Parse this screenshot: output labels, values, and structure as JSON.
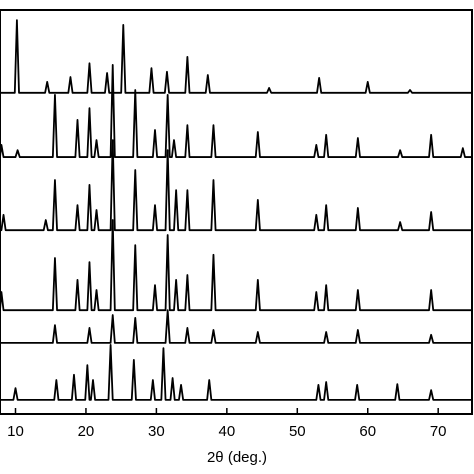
{
  "chart_data": {
    "type": "line",
    "xlabel": "2θ (deg.)",
    "xlim": [
      7.8,
      74.8
    ],
    "xticks": [
      10,
      20,
      30,
      40,
      50,
      60,
      70
    ],
    "ylim": [
      0,
      100
    ],
    "series": [
      {
        "color": "#000000",
        "x": [
          7.8,
          9.9,
          10.2,
          10.5,
          14.2,
          14.5,
          14.8,
          17.5,
          17.8,
          18.1,
          20.2,
          20.5,
          20.8,
          22.7,
          23.0,
          23.3,
          25.0,
          25.3,
          25.6,
          29.0,
          29.3,
          29.6,
          31.2,
          31.5,
          31.8,
          34.1,
          34.4,
          34.7,
          37.0,
          37.3,
          37.6,
          45.7,
          46.0,
          46.3,
          52.8,
          53.1,
          53.4,
          59.7,
          60.0,
          60.3,
          65.7,
          66.0,
          66.3,
          74.8
        ],
        "values": [
          79.5,
          79.5,
          97.5,
          79.5,
          79.5,
          82.2,
          79.5,
          79.5,
          83.4,
          79.5,
          79.5,
          86.8,
          79.5,
          79.5,
          84.4,
          79.5,
          79.5,
          96.3,
          79.5,
          79.5,
          85.6,
          79.5,
          79.5,
          84.7,
          79.5,
          79.5,
          88.4,
          79.5,
          79.5,
          83.9,
          79.5,
          79.5,
          80.7,
          79.5,
          79.5,
          83.2,
          79.5,
          79.5,
          82.2,
          79.5,
          79.5,
          80.2,
          79.5,
          79.5
        ]
      },
      {
        "color": "#000000",
        "x": [
          7.8,
          8.0,
          8.3,
          10.0,
          10.3,
          10.6,
          15.3,
          15.6,
          15.9,
          18.5,
          18.8,
          19.1,
          20.2,
          20.5,
          20.8,
          21.2,
          21.5,
          21.8,
          23.5,
          23.8,
          24.1,
          26.7,
          27.0,
          27.3,
          29.5,
          29.8,
          30.1,
          31.3,
          31.6,
          31.9,
          32.2,
          32.5,
          32.8,
          34.1,
          34.4,
          34.7,
          37.8,
          38.1,
          38.4,
          44.1,
          44.4,
          44.7,
          52.4,
          52.7,
          53.0,
          53.8,
          54.1,
          54.4,
          58.3,
          58.6,
          58.9,
          64.3,
          64.6,
          64.9,
          68.7,
          69.0,
          69.3,
          73.2,
          73.5,
          73.8,
          74.8
        ],
        "values": [
          63.6,
          66.6,
          63.6,
          63.6,
          65.3,
          63.6,
          63.6,
          79.0,
          63.6,
          63.6,
          72.8,
          63.6,
          63.6,
          75.7,
          63.6,
          63.6,
          67.8,
          63.6,
          63.6,
          86.4,
          63.6,
          63.6,
          80.2,
          63.6,
          63.6,
          70.3,
          63.6,
          63.6,
          79.0,
          63.6,
          63.6,
          67.8,
          63.6,
          63.6,
          71.5,
          63.6,
          63.6,
          71.5,
          63.6,
          63.6,
          69.8,
          63.6,
          63.6,
          66.6,
          63.6,
          63.6,
          69.1,
          63.6,
          63.6,
          68.3,
          63.6,
          63.6,
          65.3,
          63.6,
          63.6,
          69.1,
          63.6,
          63.6,
          65.8,
          63.6,
          63.6
        ]
      },
      {
        "color": "#000000",
        "x": [
          7.8,
          8.0,
          8.3,
          8.6,
          14.0,
          14.3,
          14.6,
          15.3,
          15.6,
          15.9,
          18.5,
          18.8,
          19.1,
          20.2,
          20.5,
          20.8,
          21.2,
          21.5,
          21.8,
          23.5,
          23.8,
          24.1,
          26.7,
          27.0,
          27.3,
          29.5,
          29.8,
          30.1,
          31.3,
          31.6,
          31.9,
          32.5,
          32.8,
          33.1,
          34.1,
          34.4,
          34.7,
          37.8,
          38.1,
          38.4,
          44.1,
          44.4,
          44.7,
          52.4,
          52.7,
          53.0,
          53.8,
          54.1,
          54.4,
          58.3,
          58.6,
          58.9,
          64.3,
          64.6,
          64.9,
          68.7,
          69.0,
          69.3,
          74.8
        ],
        "values": [
          45.5,
          45.5,
          49.3,
          45.5,
          45.5,
          48.0,
          45.5,
          45.5,
          57.9,
          45.5,
          45.5,
          51.7,
          45.5,
          45.5,
          56.7,
          45.5,
          45.5,
          50.5,
          45.5,
          45.5,
          67.8,
          45.5,
          45.5,
          60.4,
          45.5,
          45.5,
          51.7,
          45.5,
          45.5,
          65.3,
          45.5,
          45.5,
          55.4,
          45.5,
          45.5,
          55.4,
          45.5,
          45.5,
          57.9,
          45.5,
          45.5,
          53.0,
          45.5,
          45.5,
          49.3,
          45.5,
          45.5,
          51.7,
          45.5,
          45.5,
          51.0,
          45.5,
          45.5,
          47.5,
          45.5,
          45.5,
          50.0,
          45.5,
          45.5
        ]
      },
      {
        "color": "#000000",
        "x": [
          7.8,
          8.0,
          8.3,
          15.3,
          15.6,
          15.9,
          18.5,
          18.8,
          19.1,
          20.2,
          20.5,
          20.8,
          21.2,
          21.5,
          21.8,
          23.5,
          23.8,
          24.1,
          26.7,
          27.0,
          27.3,
          29.5,
          29.8,
          30.1,
          31.3,
          31.6,
          31.9,
          32.5,
          32.8,
          33.1,
          34.1,
          34.4,
          34.7,
          37.8,
          38.1,
          38.4,
          44.1,
          44.4,
          44.7,
          52.4,
          52.7,
          53.0,
          53.8,
          54.1,
          54.4,
          58.3,
          58.6,
          58.9,
          68.7,
          69.0,
          69.3,
          74.8
        ],
        "values": [
          25.7,
          30.2,
          25.7,
          25.7,
          38.6,
          25.7,
          25.7,
          33.2,
          25.7,
          25.7,
          37.6,
          25.7,
          25.7,
          30.7,
          25.7,
          25.7,
          48.0,
          25.7,
          25.7,
          41.8,
          25.7,
          25.7,
          31.9,
          25.7,
          25.7,
          44.3,
          25.7,
          25.7,
          33.2,
          25.7,
          25.7,
          34.4,
          25.7,
          25.7,
          39.4,
          25.7,
          25.7,
          33.2,
          25.7,
          25.7,
          30.2,
          25.7,
          25.7,
          31.9,
          25.7,
          25.7,
          30.7,
          25.7,
          25.7,
          30.7,
          25.7,
          25.7
        ]
      },
      {
        "color": "#000000",
        "x": [
          7.8,
          15.3,
          15.6,
          15.9,
          20.2,
          20.5,
          20.8,
          23.5,
          23.8,
          24.1,
          26.7,
          27.0,
          27.3,
          31.3,
          31.6,
          31.9,
          34.1,
          34.4,
          34.7,
          37.8,
          38.1,
          38.4,
          44.1,
          44.4,
          44.7,
          53.8,
          54.1,
          54.4,
          58.3,
          58.6,
          58.9,
          68.7,
          69.0,
          69.3,
          74.8
        ],
        "values": [
          17.6,
          17.6,
          22.0,
          17.6,
          17.6,
          21.3,
          17.6,
          17.6,
          24.5,
          17.6,
          17.6,
          23.8,
          17.6,
          17.6,
          25.7,
          17.6,
          17.6,
          21.3,
          17.6,
          17.6,
          20.8,
          17.6,
          17.6,
          20.3,
          17.6,
          17.6,
          20.3,
          17.6,
          17.6,
          20.8,
          17.6,
          17.6,
          19.6,
          17.6,
          17.6
        ]
      },
      {
        "color": "#000000",
        "x": [
          7.8,
          9.7,
          10.0,
          10.3,
          15.5,
          15.8,
          16.1,
          18.0,
          18.3,
          18.6,
          19.9,
          20.2,
          20.5,
          20.7,
          21.0,
          21.3,
          23.2,
          23.5,
          23.8,
          26.5,
          26.8,
          27.1,
          29.2,
          29.5,
          29.8,
          30.7,
          31.0,
          31.3,
          32.0,
          32.3,
          32.6,
          33.2,
          33.5,
          33.8,
          37.2,
          37.5,
          37.8,
          52.7,
          53.0,
          53.3,
          53.8,
          54.1,
          54.4,
          58.2,
          58.5,
          58.8,
          63.9,
          64.2,
          64.5,
          68.7,
          69.0,
          69.3,
          74.8
        ],
        "values": [
          3.5,
          3.5,
          6.4,
          3.5,
          3.5,
          8.4,
          3.5,
          3.5,
          9.7,
          3.5,
          3.5,
          12.1,
          3.5,
          3.5,
          8.4,
          3.5,
          3.5,
          17.1,
          3.5,
          3.5,
          13.4,
          3.5,
          3.5,
          8.4,
          3.5,
          3.5,
          16.3,
          3.5,
          3.5,
          8.9,
          3.5,
          3.5,
          7.2,
          3.5,
          3.5,
          8.4,
          3.5,
          3.5,
          7.2,
          3.5,
          3.5,
          7.9,
          3.5,
          3.5,
          7.2,
          3.5,
          3.5,
          7.4,
          3.5,
          3.5,
          5.9,
          3.5,
          3.5
        ]
      }
    ]
  }
}
